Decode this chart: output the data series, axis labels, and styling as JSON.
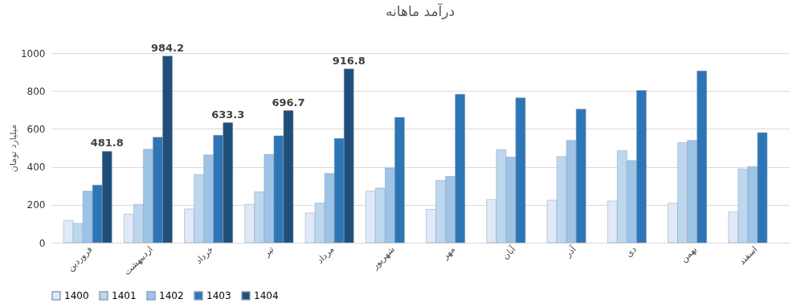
{
  "chart_data": {
    "type": "bar",
    "title": "درآمد ماهانه",
    "ylabel": "میلیارد تومان",
    "categories": [
      "فروردین",
      "اردیبهشت",
      "خرداد",
      "تیر",
      "مرداد",
      "شهریور",
      "مهر",
      "آبان",
      "آذر",
      "دی",
      "بهمن",
      "اسفند"
    ],
    "series": [
      {
        "name": "1400",
        "color": "#dfe9f7",
        "values": [
          118,
          150,
          178,
          202,
          157,
          272,
          176,
          228,
          224,
          220,
          208,
          162
        ]
      },
      {
        "name": "1401",
        "color": "#bdd7ee",
        "values": [
          102,
          202,
          359,
          268,
          209,
          288,
          329,
          491,
          454,
          485,
          528,
          389
        ]
      },
      {
        "name": "1402",
        "color": "#9dc3e6",
        "values": [
          272,
          493,
          463,
          466,
          365,
          394,
          350,
          452,
          539,
          433,
          539,
          402
        ]
      },
      {
        "name": "1403",
        "color": "#2e75b6",
        "values": [
          304,
          556,
          567,
          564,
          550,
          661,
          783,
          764,
          704,
          803,
          906,
          580
        ]
      },
      {
        "name": "1404",
        "color": "#1f4e79",
        "values": [
          481.8,
          984.2,
          633.3,
          696.7,
          916.8,
          null,
          null,
          null,
          null,
          null,
          null,
          null
        ],
        "value_labels": [
          "481.8",
          "984.2",
          "633.3",
          "696.7",
          "916.8",
          null,
          null,
          null,
          null,
          null,
          null,
          null
        ]
      }
    ],
    "ylim": [
      0,
      1000
    ],
    "yticks": [
      0,
      200,
      400,
      600,
      800,
      1000
    ],
    "grid": "y",
    "legend": "bottom"
  }
}
